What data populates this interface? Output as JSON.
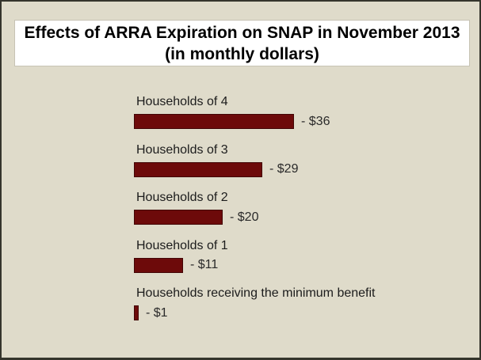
{
  "title": {
    "line1": "Effects of ARRA Expiration on SNAP in November 2013",
    "line2": "(in monthly dollars)"
  },
  "colors": {
    "background": "#dfdbca",
    "title_background": "#ffffff",
    "bar_fill": "#6d0a0a",
    "bar_border": "#420606",
    "frame_border": "#35352c",
    "label_text": "#1c1c1c"
  },
  "chart_data": {
    "type": "bar",
    "orientation": "horizontal",
    "title": "Effects of ARRA Expiration on SNAP in November 2013 (in monthly dollars)",
    "categories": [
      "Households of 4",
      "Households of 3",
      "Households of 2",
      "Households of 1",
      "Households receiving the minimum benefit"
    ],
    "values": [
      -36,
      -29,
      -20,
      -11,
      -1
    ],
    "value_labels": [
      "- $36",
      "- $29",
      "- $20",
      "- $11",
      "- $1"
    ],
    "xlabel": "",
    "ylabel": "",
    "value_range": [
      0,
      36
    ],
    "axis_visible": false,
    "grid": false,
    "legend": "none"
  }
}
